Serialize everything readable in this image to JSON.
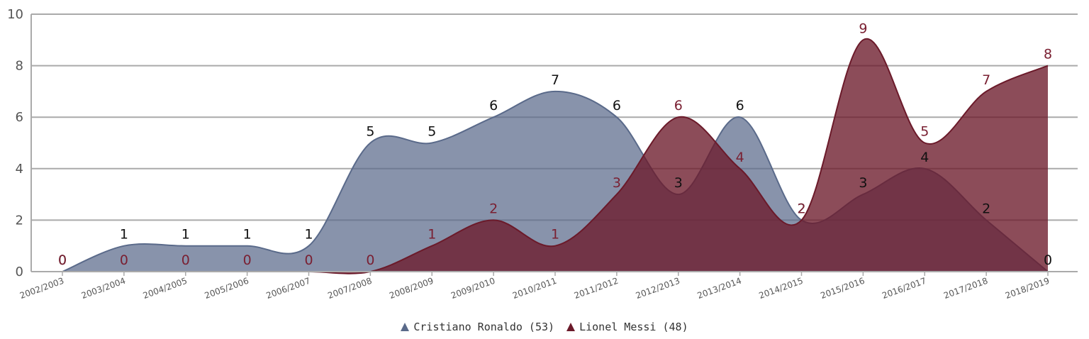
{
  "chart_data": {
    "type": "area",
    "categories": [
      "2002/2003",
      "2003/2004",
      "2004/2005",
      "2005/2006",
      "2006/2007",
      "2007/2008",
      "2008/2009",
      "2009/2010",
      "2010/2011",
      "2011/2012",
      "2012/2013",
      "2013/2014",
      "2014/2015",
      "2015/2016",
      "2016/2017",
      "2017/2018",
      "2018/2019"
    ],
    "series": [
      {
        "name": "Cristiano Ronaldo",
        "legend_label": "Cristiano Ronaldo (53)",
        "total": 53,
        "color": "#5a6a8a",
        "label_color": "#111111",
        "values": [
          0,
          1,
          1,
          1,
          1,
          5,
          5,
          6,
          7,
          6,
          3,
          6,
          2,
          3,
          4,
          2,
          0
        ]
      },
      {
        "name": "Lionel Messi",
        "legend_label": "Lionel Messi (48)",
        "total": 48,
        "color": "#6b1a2a",
        "label_color": "#7a2032",
        "values": [
          0,
          0,
          0,
          0,
          0,
          0,
          1,
          2,
          1,
          3,
          6,
          4,
          2,
          9,
          5,
          7,
          8
        ]
      }
    ],
    "ylim": [
      0,
      10
    ],
    "yticks": [
      "0",
      "2",
      "4",
      "6",
      "8",
      "10"
    ],
    "grid": true,
    "legend_position": "bottom-center",
    "title": "",
    "xlabel": "",
    "ylabel": ""
  }
}
